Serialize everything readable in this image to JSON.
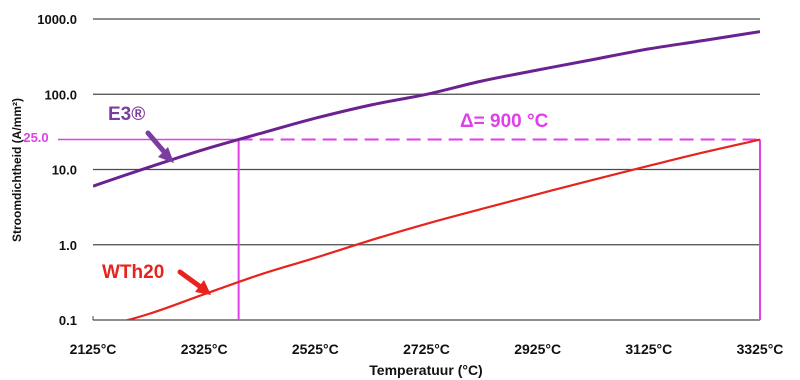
{
  "chart_data": {
    "type": "line",
    "title": "",
    "xlabel": "Temperatuur (°C)",
    "ylabel": "Stroomdichtheid (A/mm²)",
    "y_scale": "log",
    "ylim": [
      0.1,
      1000
    ],
    "xlim": [
      2125,
      3325
    ],
    "x_ticks": [
      2125,
      2325,
      2525,
      2725,
      2925,
      3125,
      3325
    ],
    "x_tick_labels": [
      "2125°C",
      "2325°C",
      "2525°C",
      "2725°C",
      "2925°C",
      "3125°C",
      "3325°C"
    ],
    "y_ticks": [
      0.1,
      1,
      10,
      100,
      1000
    ],
    "y_tick_labels": [
      "0.1",
      "1.0",
      "10.0",
      "100.0",
      "1000.0"
    ],
    "grid": "horizontal",
    "legend": "none",
    "series": [
      {
        "name": "E3®",
        "color": "#6a2290",
        "x": [
          2125,
          2225,
          2325,
          2425,
          2525,
          2625,
          2725,
          2825,
          2925,
          3025,
          3125,
          3225,
          3325
        ],
        "y": [
          6.0,
          10.7,
          18.5,
          30,
          48,
          72,
          100,
          150,
          210,
          290,
          400,
          520,
          680
        ]
      },
      {
        "name": "WTh20",
        "color": "#e8231e",
        "x": [
          2125,
          2225,
          2325,
          2425,
          2525,
          2625,
          2725,
          2825,
          2925,
          3025,
          3125,
          3225,
          3325
        ],
        "y": [
          0.075,
          0.12,
          0.22,
          0.4,
          0.67,
          1.15,
          1.9,
          3.0,
          4.7,
          7.3,
          11.2,
          17.0,
          25.0
        ]
      }
    ],
    "annotations": {
      "y_marker_label": "25.0",
      "y_marker_value": 25,
      "x_marker_values": [
        2387,
        3325
      ],
      "delta_label": "Δ= 900  °C",
      "marker_color": "#e040e8"
    }
  }
}
